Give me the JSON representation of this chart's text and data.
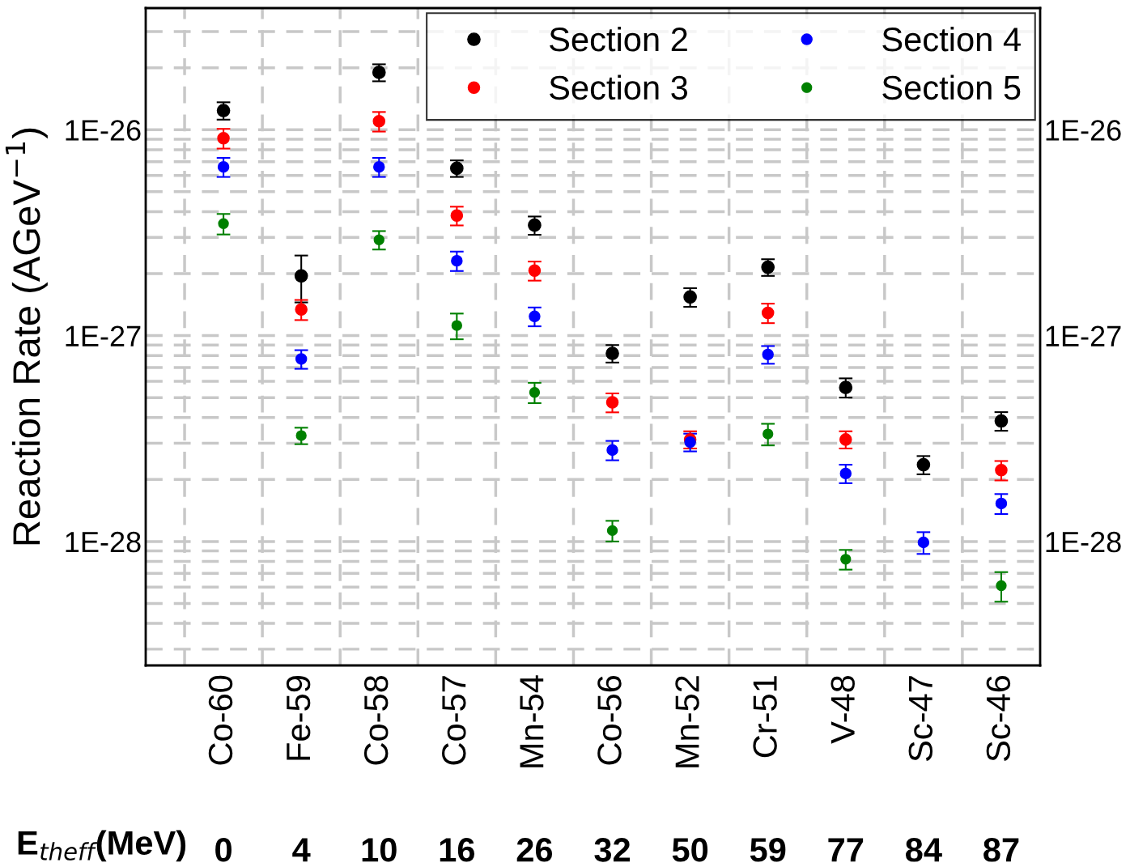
{
  "chart_data": {
    "type": "scatter",
    "ylabel": "Reaction Rate (AGeV$^{−1}$)",
    "categories": [
      "Co-60",
      "Fe-59",
      "Co-58",
      "Co-57",
      "Mn-54",
      "Co-56",
      "Mn-52",
      "Cr-51",
      "V-48",
      "Sc-47",
      "Sc-46"
    ],
    "series": [
      {
        "name": "Section 2",
        "color": "#000000",
        "values": [
          1.24e-26,
          1.95e-27,
          1.9e-26,
          6.5e-27,
          3.44e-27,
          8.2e-28,
          1.54e-27,
          2.15e-27,
          5.6e-28,
          2.36e-28,
          3.85e-28
        ],
        "errors": [
          1.2e-27,
          5e-28,
          1.8e-27,
          6e-28,
          3.5e-28,
          8e-29,
          1.6e-28,
          2e-28,
          6e-29,
          2.4e-29,
          4e-29
        ]
      },
      {
        "name": "Section 3",
        "color": "#ff0000",
        "values": [
          9.1e-27,
          1.34e-27,
          1.1e-26,
          3.83e-27,
          2.07e-27,
          4.74e-28,
          3.13e-28,
          1.29e-27,
          3.13e-28,
          null,
          2.22e-28
        ],
        "errors": [
          1e-27,
          1.5e-28,
          1.2e-27,
          4e-28,
          2.2e-28,
          5e-29,
          3e-29,
          1.4e-28,
          3e-29,
          null,
          2.4e-29
        ]
      },
      {
        "name": "Section 4",
        "color": "#0000ff",
        "values": [
          6.6e-27,
          7.7e-28,
          6.6e-27,
          2.31e-27,
          1.24e-27,
          2.78e-28,
          3.04e-28,
          8.1e-28,
          2.14e-28,
          9.9e-29,
          1.53e-28
        ],
        "errors": [
          7e-28,
          8e-29,
          7e-28,
          2.5e-28,
          1.3e-28,
          3e-29,
          3e-29,
          8e-29,
          2.2e-29,
          1.2e-29,
          1.7e-29
        ]
      },
      {
        "name": "Section 5",
        "color": "#008000",
        "values": [
          3.5e-27,
          3.27e-28,
          2.92e-27,
          1.12e-27,
          5.3e-28,
          1.13e-28,
          null,
          3.33e-28,
          8.2e-29,
          null,
          6.1e-29
        ],
        "errors": [
          4e-28,
          3e-29,
          3e-28,
          1.6e-28,
          6e-29,
          1.3e-29,
          null,
          4e-29,
          9e-30,
          null,
          1e-29
        ]
      }
    ],
    "log": true,
    "ylim": [
      2.5e-29,
      3.9e-26
    ],
    "yticks": [
      {
        "value": 3e-29,
        "label": null
      },
      {
        "value": 4e-29,
        "label": null
      },
      {
        "value": 5e-29,
        "label": null
      },
      {
        "value": 6e-29,
        "label": null
      },
      {
        "value": 7e-29,
        "label": null
      },
      {
        "value": 8e-29,
        "label": null
      },
      {
        "value": 9e-29,
        "label": null
      },
      {
        "value": 1e-28,
        "label": "1E-28"
      },
      {
        "value": 2e-28,
        "label": null
      },
      {
        "value": 3e-28,
        "label": null
      },
      {
        "value": 4e-28,
        "label": null
      },
      {
        "value": 5e-28,
        "label": null
      },
      {
        "value": 6e-28,
        "label": null
      },
      {
        "value": 7e-28,
        "label": null
      },
      {
        "value": 8e-28,
        "label": null
      },
      {
        "value": 9e-28,
        "label": null
      },
      {
        "value": 1e-27,
        "label": "1E-27"
      },
      {
        "value": 2e-27,
        "label": null
      },
      {
        "value": 3e-27,
        "label": null
      },
      {
        "value": 4e-27,
        "label": null
      },
      {
        "value": 5e-27,
        "label": null
      },
      {
        "value": 6e-27,
        "label": null
      },
      {
        "value": 7e-27,
        "label": null
      },
      {
        "value": 8e-27,
        "label": null
      },
      {
        "value": 9e-27,
        "label": null
      },
      {
        "value": 1e-26,
        "label": "1E-26"
      },
      {
        "value": 2e-26,
        "label": null
      },
      {
        "value": 3e-26,
        "label": null
      }
    ],
    "annotations": [
      "E$_{theff}$(MeV)",
      "0",
      "4",
      "10",
      "16",
      "26",
      "32",
      "50",
      "59",
      "77",
      "84",
      "87"
    ],
    "grid": true,
    "legend": "top right",
    "marker": "circle"
  }
}
